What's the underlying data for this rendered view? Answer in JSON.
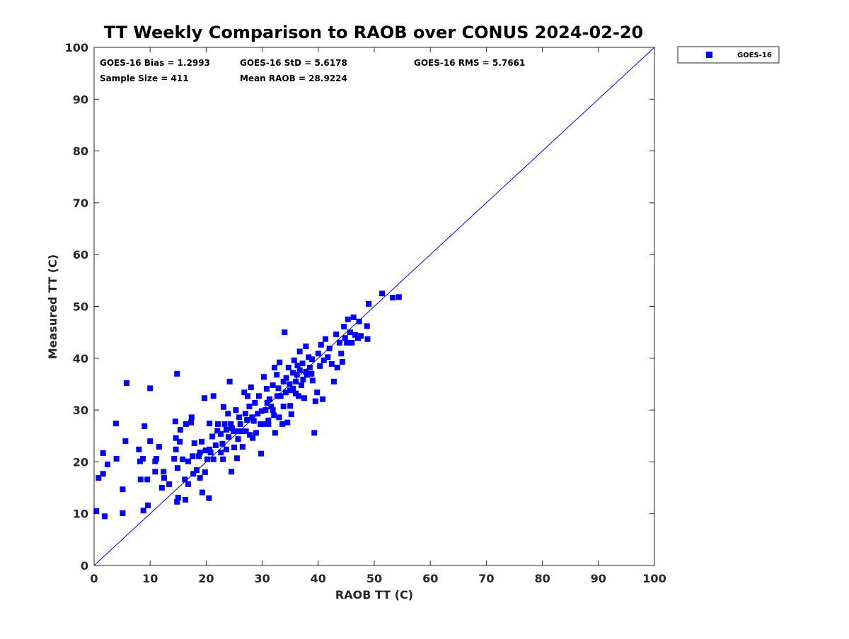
{
  "chart_data": {
    "type": "scatter",
    "title": "TT Weekly Comparison to RAOB over CONUS 2024-02-20",
    "xlabel": "RAOB TT (C)",
    "ylabel": "Measured TT (C)",
    "xlim": [
      0,
      100
    ],
    "ylim": [
      0,
      100
    ],
    "xticks": [
      0,
      10,
      20,
      30,
      40,
      50,
      60,
      70,
      80,
      90,
      100
    ],
    "yticks": [
      0,
      10,
      20,
      30,
      40,
      50,
      60,
      70,
      80,
      90,
      100
    ],
    "grid": false,
    "legend": {
      "position": "outside-top-right",
      "entries": [
        "GOES-16"
      ]
    },
    "reference_line": {
      "name": "1:1 line",
      "from": [
        0,
        0
      ],
      "to": [
        100,
        100
      ],
      "color": "#0000ff"
    },
    "stats": [
      "GOES-16 Bias = 1.2993",
      "GOES-16 StD = 5.6178",
      "GOES-16 RMS = 5.7661",
      "Sample Size = 411",
      "Mean RAOB = 28.9224"
    ],
    "series": [
      {
        "name": "GOES-16",
        "color": "#0000ff",
        "marker": "square",
        "points": [
          [
            0.4,
            10.5
          ],
          [
            0.8,
            16.9
          ],
          [
            1.6,
            17.7
          ],
          [
            1.6,
            21.7
          ],
          [
            1.9,
            9.5
          ],
          [
            2.4,
            19.5
          ],
          [
            3.9,
            27.4
          ],
          [
            4.0,
            20.6
          ],
          [
            5.1,
            14.7
          ],
          [
            5.1,
            10.1
          ],
          [
            5.6,
            24.0
          ],
          [
            5.8,
            35.2
          ],
          [
            8.0,
            22.4
          ],
          [
            8.2,
            20.1
          ],
          [
            8.3,
            16.6
          ],
          [
            8.7,
            20.6
          ],
          [
            9.0,
            26.9
          ],
          [
            8.8,
            10.6
          ],
          [
            9.6,
            11.6
          ],
          [
            9.5,
            16.6
          ],
          [
            10.0,
            34.2
          ],
          [
            10.0,
            24.0
          ],
          [
            10.9,
            20.1
          ],
          [
            10.9,
            18.1
          ],
          [
            11.1,
            20.6
          ],
          [
            11.6,
            22.9
          ],
          [
            12.1,
            15.0
          ],
          [
            12.4,
            18.1
          ],
          [
            12.5,
            16.9
          ],
          [
            13.4,
            15.7
          ],
          [
            14.3,
            20.6
          ],
          [
            14.5,
            27.8
          ],
          [
            14.6,
            24.6
          ],
          [
            14.6,
            22.4
          ],
          [
            14.8,
            37.0
          ],
          [
            14.8,
            12.3
          ],
          [
            14.9,
            18.8
          ],
          [
            15.0,
            13.1
          ],
          [
            15.3,
            23.9
          ],
          [
            15.4,
            26.2
          ],
          [
            15.8,
            20.5
          ],
          [
            16.2,
            16.6
          ],
          [
            16.3,
            12.7
          ],
          [
            16.4,
            27.3
          ],
          [
            16.8,
            20.1
          ],
          [
            16.8,
            15.7
          ],
          [
            17.3,
            27.6
          ],
          [
            17.4,
            28.6
          ],
          [
            17.6,
            21.1
          ],
          [
            17.7,
            17.7
          ],
          [
            17.9,
            23.6
          ],
          [
            18.3,
            18.4
          ],
          [
            18.7,
            21.1
          ],
          [
            18.9,
            21.8
          ],
          [
            18.9,
            16.9
          ],
          [
            19.2,
            23.9
          ],
          [
            19.3,
            14.1
          ],
          [
            19.7,
            32.3
          ],
          [
            19.8,
            18.0
          ],
          [
            20.2,
            20.5
          ],
          [
            20.5,
            13.0
          ],
          [
            20.6,
            22.4
          ],
          [
            20.6,
            27.4
          ],
          [
            21.3,
            32.7
          ],
          [
            21.3,
            20.5
          ],
          [
            21.7,
            23.2
          ],
          [
            22.1,
            27.3
          ],
          [
            22.6,
            25.4
          ],
          [
            22.6,
            21.8
          ],
          [
            23.0,
            20.5
          ],
          [
            23.1,
            30.6
          ],
          [
            23.3,
            27.3
          ],
          [
            23.6,
            22.4
          ],
          [
            23.9,
            29.3
          ],
          [
            24.0,
            24.8
          ],
          [
            24.2,
            35.5
          ],
          [
            24.4,
            27.3
          ],
          [
            24.5,
            18.1
          ],
          [
            24.9,
            25.9
          ],
          [
            25.0,
            22.8
          ],
          [
            25.3,
            30.0
          ],
          [
            25.5,
            20.7
          ],
          [
            25.6,
            25.9
          ],
          [
            25.9,
            28.6
          ],
          [
            26.1,
            25.9
          ],
          [
            26.5,
            22.9
          ],
          [
            26.8,
            33.4
          ],
          [
            27.0,
            29.3
          ],
          [
            27.1,
            25.9
          ],
          [
            27.4,
            32.7
          ],
          [
            27.7,
            30.7
          ],
          [
            28.0,
            34.4
          ],
          [
            28.2,
            28.6
          ],
          [
            28.3,
            24.6
          ],
          [
            28.7,
            31.4
          ],
          [
            28.9,
            25.6
          ],
          [
            29.2,
            29.3
          ],
          [
            29.4,
            32.7
          ],
          [
            29.7,
            27.3
          ],
          [
            29.8,
            21.6
          ],
          [
            30.1,
            27.3
          ],
          [
            30.3,
            36.4
          ],
          [
            30.6,
            30.0
          ],
          [
            30.8,
            34.1
          ],
          [
            31.1,
            28.0
          ],
          [
            31.3,
            32.1
          ],
          [
            31.6,
            30.7
          ],
          [
            31.9,
            34.8
          ],
          [
            32.2,
            38.2
          ],
          [
            32.3,
            25.6
          ],
          [
            32.6,
            36.8
          ],
          [
            32.7,
            32.7
          ],
          [
            33.1,
            39.2
          ],
          [
            33.3,
            32.7
          ],
          [
            33.6,
            27.3
          ],
          [
            33.8,
            35.5
          ],
          [
            34.0,
            45.0
          ],
          [
            34.2,
            33.4
          ],
          [
            34.5,
            27.6
          ],
          [
            34.7,
            38.2
          ],
          [
            35.0,
            30.8
          ],
          [
            35.2,
            29.2
          ],
          [
            35.5,
            34.1
          ],
          [
            35.7,
            39.6
          ],
          [
            36.0,
            35.5
          ],
          [
            36.2,
            36.8
          ],
          [
            36.5,
            32.7
          ],
          [
            36.7,
            41.3
          ],
          [
            37.0,
            34.8
          ],
          [
            37.2,
            39.0
          ],
          [
            37.5,
            32.3
          ],
          [
            37.8,
            42.3
          ],
          [
            38.0,
            36.8
          ],
          [
            38.3,
            40.2
          ],
          [
            38.5,
            38.2
          ],
          [
            38.9,
            39.8
          ],
          [
            39.0,
            35.7
          ],
          [
            39.3,
            25.6
          ],
          [
            39.5,
            31.7
          ],
          [
            39.8,
            33.4
          ],
          [
            40.0,
            40.9
          ],
          [
            40.3,
            38.5
          ],
          [
            40.5,
            42.6
          ],
          [
            40.8,
            32.1
          ],
          [
            41.0,
            39.6
          ],
          [
            41.3,
            43.7
          ],
          [
            41.7,
            40.2
          ],
          [
            42.0,
            41.9
          ],
          [
            42.4,
            38.9
          ],
          [
            42.8,
            35.5
          ],
          [
            43.2,
            44.6
          ],
          [
            43.4,
            38.2
          ],
          [
            43.8,
            43.0
          ],
          [
            44.1,
            40.9
          ],
          [
            44.3,
            39.3
          ],
          [
            44.6,
            46.1
          ],
          [
            44.8,
            43.9
          ],
          [
            45.1,
            43.0
          ],
          [
            45.3,
            47.5
          ],
          [
            45.7,
            45.0
          ],
          [
            46.0,
            43.0
          ],
          [
            46.3,
            47.9
          ],
          [
            46.6,
            44.5
          ],
          [
            47.1,
            43.9
          ],
          [
            47.3,
            47.1
          ],
          [
            47.6,
            44.3
          ],
          [
            48.7,
            46.2
          ],
          [
            48.8,
            43.7
          ],
          [
            49.0,
            50.5
          ],
          [
            51.4,
            52.5
          ],
          [
            53.3,
            51.7
          ],
          [
            54.4,
            51.8
          ],
          [
            31.9,
            30.0
          ],
          [
            33.0,
            28.6
          ],
          [
            34.3,
            36.2
          ],
          [
            35.5,
            37.2
          ],
          [
            36.7,
            37.7
          ],
          [
            33.8,
            30.7
          ],
          [
            35.0,
            33.8
          ],
          [
            31.1,
            27.3
          ],
          [
            28.5,
            27.9
          ],
          [
            26.1,
            27.3
          ],
          [
            23.6,
            26.2
          ],
          [
            21.1,
            24.9
          ],
          [
            19.9,
            22.2
          ],
          [
            22.0,
            26.0
          ],
          [
            24.6,
            26.5
          ],
          [
            27.3,
            28.1
          ],
          [
            29.9,
            29.8
          ],
          [
            30.9,
            31.4
          ],
          [
            32.9,
            34.2
          ],
          [
            34.9,
            35.0
          ],
          [
            36.3,
            38.6
          ],
          [
            37.8,
            37.4
          ],
          [
            38.8,
            37.0
          ],
          [
            36.0,
            33.2
          ],
          [
            37.3,
            35.9
          ],
          [
            25.7,
            24.4
          ],
          [
            27.8,
            25.2
          ],
          [
            22.9,
            23.5
          ],
          [
            20.8,
            21.8
          ],
          [
            32.1,
            29.0
          ]
        ]
      }
    ]
  }
}
